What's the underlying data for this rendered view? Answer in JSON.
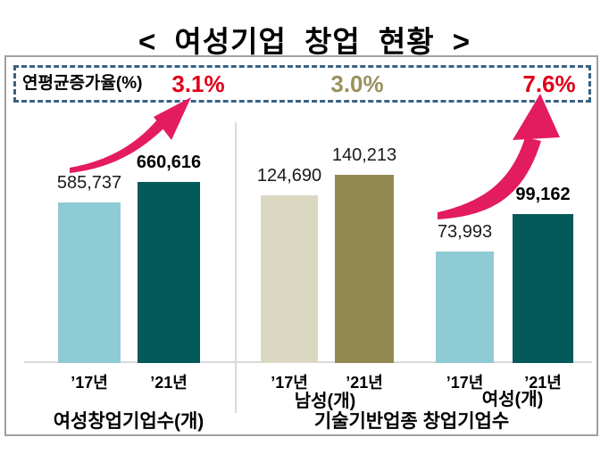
{
  "title": "< 여성기업 창업 현황 >",
  "rate_box": {
    "label": "연평균증가율(%)",
    "rates": [
      {
        "value": "3.1%",
        "color": "#e00019"
      },
      {
        "value": "3.0%",
        "color": "#9a915f"
      },
      {
        "value": "7.6%",
        "color": "#e00019"
      }
    ],
    "border_color": "#3a6280"
  },
  "colors": {
    "bar_light_blue": "#8fcbd5",
    "bar_dark_teal": "#04595b",
    "bar_beige": "#dbd8c2",
    "bar_olive": "#928a50",
    "accent_red": "#e00019",
    "accent_olive_text": "#9a915f",
    "arrow_pink": "#e31c5f",
    "dashed_border_blue": "#3a6280",
    "grid_gray": "#d9d9d9"
  },
  "chart_data": {
    "type": "bar",
    "title": "< 여성기업 창업 현황 >",
    "categories": [
      "’17년",
      "’21년"
    ],
    "groups": [
      {
        "name": "여성창업기업수(개)",
        "growth_rate_pct": 3.1,
        "values": [
          585737,
          660616
        ],
        "value_labels": [
          "585,737",
          "660,616"
        ],
        "bar_colors": [
          "#8fcbd5",
          "#04595b"
        ],
        "bold_labels": [
          false,
          true
        ]
      },
      {
        "name": "남성(개)",
        "growth_rate_pct": 3.0,
        "values": [
          124690,
          140213
        ],
        "value_labels": [
          "124,690",
          "140,213"
        ],
        "bar_colors": [
          "#dbd8c2",
          "#928a50"
        ],
        "bold_labels": [
          false,
          false
        ]
      },
      {
        "name": "여성(개)",
        "growth_rate_pct": 7.6,
        "values": [
          73993,
          99162
        ],
        "value_labels": [
          "73,993",
          "99,162"
        ],
        "bar_colors": [
          "#8fcbd5",
          "#04595b"
        ],
        "bold_labels": [
          false,
          true
        ]
      }
    ],
    "section_caption": "기술기반업종 창업기업수",
    "legend": "none",
    "axis": "no visible y-axis; values labeled above bars"
  }
}
